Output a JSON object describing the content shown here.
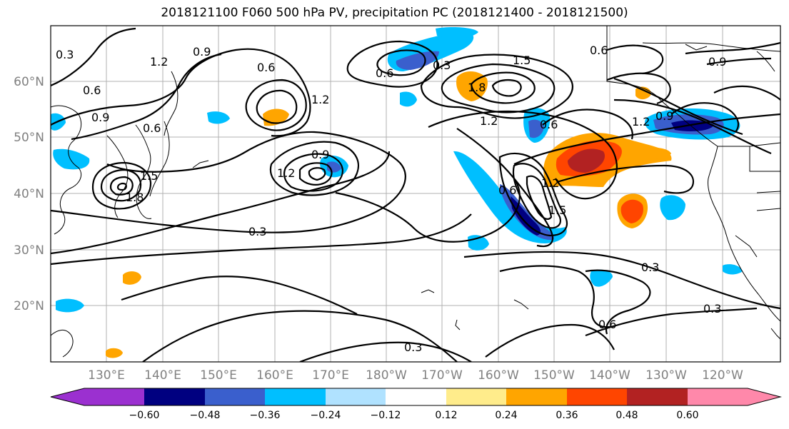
{
  "title": "2018121100 F060 500 hPa PV, precipitation PC (2018121400 - 2018121500)",
  "lat_labels": [
    "60°N",
    "50°N",
    "40°N",
    "30°N",
    "20°N"
  ],
  "lon_labels": [
    "130°E",
    "140°E",
    "150°E",
    "160°E",
    "170°E",
    "180°W",
    "170°W",
    "160°W",
    "150°W",
    "140°W",
    "130°W",
    "120°W"
  ],
  "contour_labels": [
    "0.3",
    "0.6",
    "0.9",
    "1.2",
    "1.5",
    "1.8",
    "0.3",
    "0.6",
    "0.9",
    "1.2",
    "0.6",
    "0.9",
    "1.2",
    "0.3",
    "0.6",
    "0.3",
    "0.3",
    "0.6",
    "0.9",
    "1.5",
    "1.2",
    "0.6",
    "1.2",
    "1.5",
    "1.8",
    "0.6",
    "0.3",
    "0.6",
    "0.9",
    "1.2"
  ],
  "colorbar": {
    "ticks": [
      "−0.60",
      "−0.48",
      "−0.36",
      "−0.24",
      "−0.12",
      "0.12",
      "0.24",
      "0.36",
      "0.48",
      "0.60"
    ],
    "colors": [
      "#9b30d0",
      "#000080",
      "#3a5fcd",
      "#00bfff",
      "#b0e2ff",
      "#ffffff",
      "#ffec8b",
      "#ffa500",
      "#ff4500",
      "#b22222",
      "#ff88aa"
    ]
  },
  "colors": {
    "grid": "#b0b0b0",
    "contour": "#000000",
    "axis_label": "#808080"
  }
}
